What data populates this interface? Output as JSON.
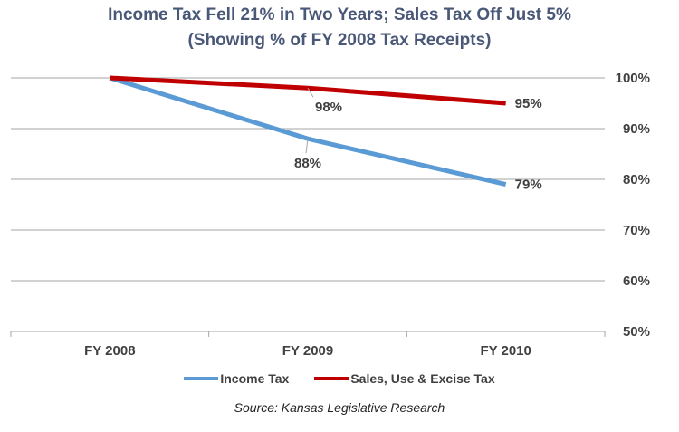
{
  "chart_data": {
    "type": "line",
    "title": "Income Tax Fell 21% in Two Years; Sales Tax Off Just 5%",
    "subtitle": "(Showing % of FY 2008 Tax Receipts)",
    "categories": [
      "FY 2008",
      "FY 2009",
      "FY 2010"
    ],
    "series": [
      {
        "name": "Income Tax",
        "values": [
          100,
          88,
          79
        ],
        "color": "#5b9bd5",
        "labels": [
          "",
          "88%",
          "79%"
        ]
      },
      {
        "name": "Sales, Use & Excise Tax",
        "values": [
          100,
          98,
          95
        ],
        "color": "#c00000",
        "labels": [
          "",
          "98%",
          "95%"
        ]
      }
    ],
    "ylim": [
      50,
      100
    ],
    "yticks": [
      100,
      90,
      80,
      70,
      60,
      50
    ],
    "ytick_labels": [
      "100%",
      "90%",
      "80%",
      "70%",
      "60%",
      "50%"
    ],
    "y_axis_side": "right",
    "grid": true,
    "legend_position": "bottom",
    "source": "Source: Kansas Legislative Research"
  }
}
